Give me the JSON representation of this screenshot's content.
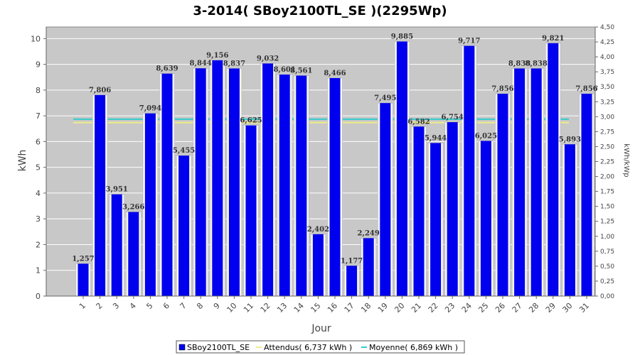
{
  "chart_data": {
    "type": "bar",
    "title": "3-2014( SBoy2100TL_SE )(2295Wp)",
    "xlabel": "Jour",
    "ylabel": "kWh",
    "ylabel_right": "kWh/kWp",
    "categories": [
      "1",
      "2",
      "3",
      "4",
      "5",
      "6",
      "7",
      "8",
      "9",
      "10",
      "11",
      "12",
      "13",
      "14",
      "15",
      "16",
      "17",
      "18",
      "19",
      "20",
      "21",
      "22",
      "23",
      "24",
      "25",
      "26",
      "27",
      "28",
      "29",
      "30",
      "31"
    ],
    "series": [
      {
        "name": "SBoy2100TL_SE",
        "color": "#0000ee",
        "values": [
          1.257,
          7.806,
          3.951,
          3.266,
          7.094,
          8.639,
          5.455,
          8.844,
          9.156,
          8.837,
          6.625,
          9.032,
          8.601,
          8.561,
          2.402,
          8.466,
          1.177,
          2.249,
          7.495,
          9.885,
          6.582,
          5.944,
          6.754,
          9.717,
          6.025,
          7.856,
          8.838,
          8.838,
          9.821,
          5.893,
          7.856
        ],
        "labels": [
          "1,257",
          "7,806",
          "3,951",
          "3,266",
          "7,094",
          "8,639",
          "5,455",
          "8,844",
          "9,156",
          "8,837",
          "6,625",
          "9,032",
          "8,601",
          "8,561",
          "2,402",
          "8,466",
          "1,177",
          "2,249",
          "7,495",
          "9,885",
          "6,582",
          "5,944",
          "6,754",
          "9,717",
          "6,025",
          "7,856",
          "8,838",
          "8,838",
          "9,821",
          "5,893",
          "7,856"
        ]
      }
    ],
    "reference_lines": [
      {
        "name": "Attendus( 6,737 kWh )",
        "value": 6.737,
        "color": "#eeee88"
      },
      {
        "name": "Moyenne( 6,869 kWh )",
        "value": 6.869,
        "color": "#33cccc"
      }
    ],
    "ylim": [
      0,
      10.45
    ],
    "yticks": [
      0,
      1,
      2,
      3,
      4,
      5,
      6,
      7,
      8,
      9,
      10
    ],
    "ylim_right": [
      0,
      4.5
    ],
    "yticks_right": [
      "0,00",
      "0,25",
      "0,50",
      "0,75",
      "1,00",
      "1,25",
      "1,50",
      "1,75",
      "2,00",
      "2,25",
      "2,50",
      "2,75",
      "3,00",
      "3,25",
      "3,50",
      "3,75",
      "4,00",
      "4,25",
      "4,50"
    ],
    "grid": true,
    "legend_position": "bottom",
    "colors": {
      "plot_bg": "#c8c8c8",
      "grid": "#ffffff",
      "bar": "#0000ee"
    }
  }
}
